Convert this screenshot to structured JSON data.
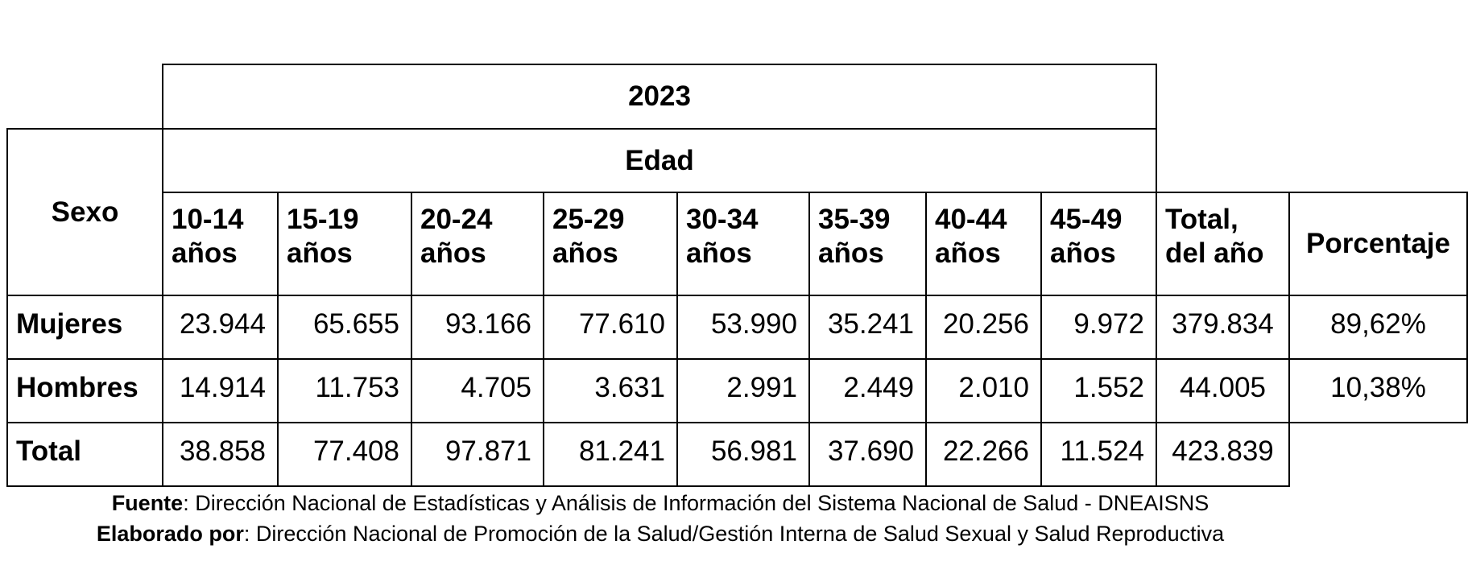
{
  "table": {
    "year": "2023",
    "age_header": "Edad",
    "row_header": "Sexo",
    "columns": [
      "10-14 años",
      "15-19 años",
      "20-24 años",
      "25-29 años",
      "30-34 años",
      "35-39 años",
      "40-44 años",
      "45-49 años"
    ],
    "total_header": "Total, del año",
    "percent_header": "Porcentaje",
    "rows": [
      {
        "label": "Mujeres",
        "values": [
          "23.944",
          "65.655",
          "93.166",
          "77.610",
          "53.990",
          "35.241",
          "20.256",
          "9.972"
        ],
        "total": "379.834",
        "percent": "89,62%"
      },
      {
        "label": "Hombres",
        "values": [
          "14.914",
          "11.753",
          "4.705",
          "3.631",
          "2.991",
          "2.449",
          "2.010",
          "1.552"
        ],
        "total": "44.005",
        "percent": "10,38%"
      },
      {
        "label": "Total",
        "values": [
          "38.858",
          "77.408",
          "97.871",
          "81.241",
          "56.981",
          "37.690",
          "22.266",
          "11.524"
        ],
        "total": "423.839"
      }
    ]
  },
  "footer": {
    "source_label": "Fuente",
    "source": ": Dirección Nacional de Estadísticas y Análisis de Información del Sistema Nacional de Salud - DNEAISNS",
    "prepared_label": "Elaborado por",
    "prepared": ": Dirección Nacional de Promoción de la Salud/Gestión Interna de Salud Sexual y Salud Reproductiva"
  }
}
